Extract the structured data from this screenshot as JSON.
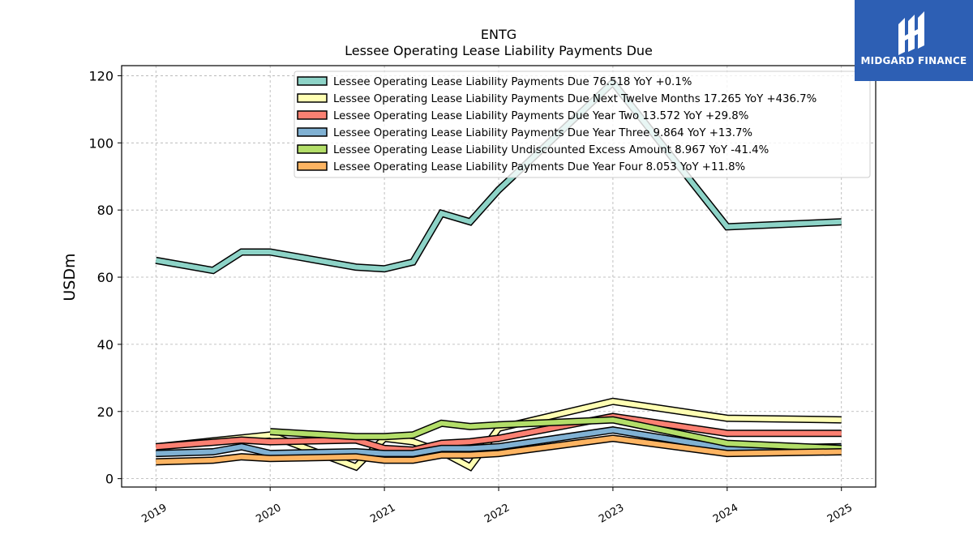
{
  "chart_data": {
    "type": "line",
    "title": "ENTG",
    "subtitle": "Lessee Operating Lease Liability Payments Due",
    "ylabel": "USDm",
    "xlabel": "",
    "x_ticks": [
      "2019",
      "2020",
      "2021",
      "2022",
      "2023",
      "2024",
      "2025"
    ],
    "xlim": [
      2018.7,
      2025.3
    ],
    "ylim": [
      -2.5,
      123
    ],
    "y_ticks": [
      0,
      20,
      40,
      60,
      80,
      100,
      120
    ],
    "grid": true,
    "legend_placement": "top-center",
    "series": [
      {
        "name": "Lessee Operating Lease Liability Payments Due",
        "legend_value": "76.518",
        "legend_change": "YoY +0.1%",
        "color": "#8dd3c7",
        "points": [
          [
            2019.0,
            65
          ],
          [
            2019.5,
            62
          ],
          [
            2019.75,
            67.5
          ],
          [
            2020.0,
            67.5
          ],
          [
            2020.75,
            63
          ],
          [
            2021.0,
            62.5
          ],
          [
            2021.25,
            64.5
          ],
          [
            2021.5,
            79
          ],
          [
            2021.75,
            76.5
          ],
          [
            2022.0,
            86
          ],
          [
            2023.0,
            118
          ],
          [
            2024.0,
            75
          ],
          [
            2025.0,
            76.5
          ]
        ]
      },
      {
        "name": "Lessee Operating Lease Liability Payments Due Next Twelve Months",
        "legend_value": "17.265",
        "legend_change": "YoY +436.7%",
        "color": "#ffffb3",
        "points": [
          [
            2019.0,
            9.5
          ],
          [
            2020.0,
            13
          ],
          [
            2020.75,
            3.5
          ],
          [
            2021.0,
            12
          ],
          [
            2021.25,
            11
          ],
          [
            2021.5,
            8
          ],
          [
            2021.75,
            3.5
          ],
          [
            2022.0,
            15
          ],
          [
            2023.0,
            23
          ],
          [
            2024.0,
            18
          ],
          [
            2025.0,
            17.5
          ]
        ]
      },
      {
        "name": "Lessee Operating Lease Liability Payments Due Year Two",
        "legend_value": "13.572",
        "legend_change": "YoY +29.8%",
        "color": "#fb8072",
        "points": [
          [
            2019.0,
            9.5
          ],
          [
            2019.75,
            11.5
          ],
          [
            2020.0,
            11
          ],
          [
            2020.75,
            11.5
          ],
          [
            2021.0,
            9
          ],
          [
            2021.25,
            8.5
          ],
          [
            2021.5,
            10.5
          ],
          [
            2021.75,
            11
          ],
          [
            2022.0,
            12
          ],
          [
            2023.0,
            18.5
          ],
          [
            2024.0,
            13.5
          ],
          [
            2025.0,
            13.5
          ]
        ]
      },
      {
        "name": "Lessee Operating Lease Liability Payments Due Year Three",
        "legend_value": "9.864",
        "legend_change": "YoY +13.7%",
        "color": "#80b1d3",
        "points": [
          [
            2019.0,
            7.5
          ],
          [
            2019.5,
            8
          ],
          [
            2019.75,
            9.5
          ],
          [
            2020.0,
            7.5
          ],
          [
            2020.75,
            8
          ],
          [
            2021.0,
            7.5
          ],
          [
            2021.25,
            7.5
          ],
          [
            2021.5,
            9
          ],
          [
            2021.75,
            9
          ],
          [
            2022.0,
            9.5
          ],
          [
            2023.0,
            14.5
          ],
          [
            2024.0,
            9
          ],
          [
            2025.0,
            9.5
          ]
        ]
      },
      {
        "name": "Lessee Operating Lease Liability Undiscounted Excess Amount",
        "legend_value": "8.967",
        "legend_change": "YoY -41.4%",
        "color": "#b3de69",
        "points": [
          [
            2020.0,
            14
          ],
          [
            2020.75,
            12.5
          ],
          [
            2021.0,
            12.5
          ],
          [
            2021.25,
            13
          ],
          [
            2021.5,
            16.5
          ],
          [
            2021.75,
            15.5
          ],
          [
            2022.0,
            16
          ],
          [
            2023.0,
            17.5
          ],
          [
            2024.0,
            10.5
          ],
          [
            2025.0,
            9
          ]
        ]
      },
      {
        "name": "Lessee Operating Lease Liability Payments Due Year Four",
        "legend_value": "8.053",
        "legend_change": "YoY +11.8%",
        "color": "#fdb462",
        "points": [
          [
            2019.0,
            5
          ],
          [
            2019.5,
            5.5
          ],
          [
            2019.75,
            6.5
          ],
          [
            2020.0,
            6
          ],
          [
            2020.75,
            6.5
          ],
          [
            2021.0,
            5.5
          ],
          [
            2021.25,
            5.5
          ],
          [
            2021.5,
            7
          ],
          [
            2021.75,
            7
          ],
          [
            2022.0,
            7.5
          ],
          [
            2023.0,
            12
          ],
          [
            2024.0,
            7.5
          ],
          [
            2025.0,
            8
          ]
        ]
      }
    ]
  },
  "logo": {
    "text": "MIDGARD FINANCE",
    "color": "#2d5fb4"
  }
}
